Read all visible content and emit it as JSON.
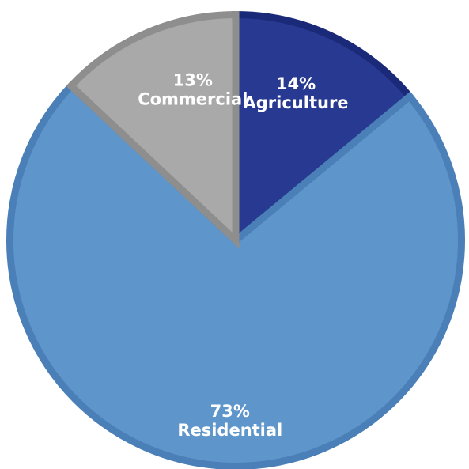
{
  "chart_data": {
    "type": "pie",
    "start_angle": 0,
    "direction": "clockwise",
    "slices": [
      {
        "name": "Agriculture",
        "value": 14,
        "percent_label": "14%",
        "color": "#273990",
        "stroke": "#1a2a78"
      },
      {
        "name": "Residential",
        "value": 73,
        "percent_label": "73%",
        "color": "#5e95cb",
        "stroke": "#4a7fb7"
      },
      {
        "name": "Commercial",
        "value": 13,
        "percent_label": "13%",
        "color": "#a9a9a9",
        "stroke": "#8e8e8e"
      }
    ]
  }
}
